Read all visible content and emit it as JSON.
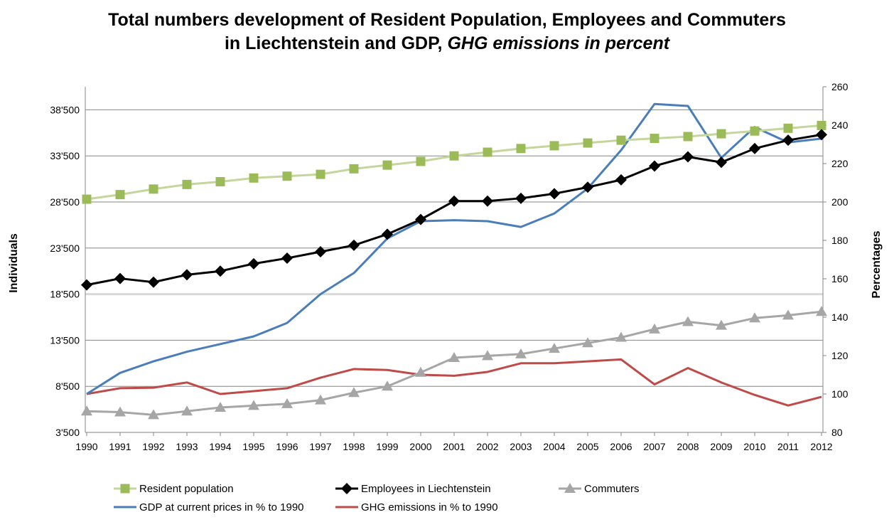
{
  "chart_data": {
    "type": "line",
    "title_line1": "Total numbers development of Resident Population, Employees and Commuters",
    "title_line2_a": "in Liechtenstein and GDP, ",
    "title_line2_b": "GHG emissions in percent",
    "ylabel_left": "Individuals",
    "ylabel_right": "Percentages",
    "x": [
      "1990",
      "1991",
      "1992",
      "1993",
      "1994",
      "1995",
      "1996",
      "1997",
      "1998",
      "1999",
      "2000",
      "2001",
      "2002",
      "2003",
      "2004",
      "2005",
      "2006",
      "2007",
      "2008",
      "2009",
      "2010",
      "2011",
      "2012"
    ],
    "y_left_range": [
      3500,
      41000
    ],
    "y_left_ticks": [
      "3'500",
      "8'500",
      "13'500",
      "18'500",
      "23'500",
      "28'500",
      "33'500",
      "38'500"
    ],
    "y_right_range": [
      80,
      260
    ],
    "y_right_ticks": [
      "80",
      "100",
      "120",
      "140",
      "160",
      "180",
      "200",
      "220",
      "240",
      "260"
    ],
    "grid": "horizontal",
    "legend_position": "bottom",
    "series": [
      {
        "name": "Resident population",
        "axis": "left",
        "color": "#9bbb59",
        "line_color": "#c3d69b",
        "marker": "square",
        "values": [
          28800,
          29300,
          29900,
          30400,
          30700,
          31100,
          31300,
          31500,
          32100,
          32500,
          32900,
          33500,
          33900,
          34300,
          34600,
          34900,
          35200,
          35400,
          35600,
          35900,
          36200,
          36500,
          36800
        ]
      },
      {
        "name": "Employees in Liechtenstein",
        "axis": "left",
        "color": "#000000",
        "line_color": "#000000",
        "marker": "diamond",
        "values": [
          19500,
          20200,
          19800,
          20600,
          21000,
          21800,
          22400,
          23100,
          23800,
          25000,
          26600,
          28600,
          28600,
          28900,
          29400,
          30100,
          30900,
          32400,
          33400,
          32800,
          34300,
          35200,
          35800
        ]
      },
      {
        "name": "Commuters",
        "axis": "left",
        "color": "#a6a6a6",
        "line_color": "#a6a6a6",
        "marker": "triangle",
        "values": [
          5800,
          5700,
          5400,
          5800,
          6200,
          6400,
          6600,
          7000,
          7800,
          8500,
          10000,
          11600,
          11800,
          12000,
          12600,
          13200,
          13800,
          14700,
          15500,
          15100,
          15900,
          16200,
          16600
        ]
      },
      {
        "name": "GDP at current prices in % to 1990",
        "axis": "right",
        "color": "#4a7ebb",
        "line_color": "#4a7ebb",
        "marker": "none",
        "values": [
          100,
          111,
          117,
          122,
          126,
          130,
          137,
          152,
          163,
          181,
          190,
          190.5,
          190,
          187,
          194,
          207,
          227,
          251,
          250,
          223,
          239,
          231,
          233
        ]
      },
      {
        "name": "GHG emissions in % to 1990",
        "axis": "right",
        "color": "#be4b48",
        "line_color": "#be4b48",
        "marker": "none",
        "values": [
          100,
          103,
          103.3,
          106,
          100,
          101.5,
          103,
          108.5,
          113,
          112.5,
          110,
          109.5,
          111.5,
          116,
          116,
          117,
          118,
          105,
          113.5,
          106,
          99.5,
          94,
          98.5
        ]
      }
    ]
  }
}
